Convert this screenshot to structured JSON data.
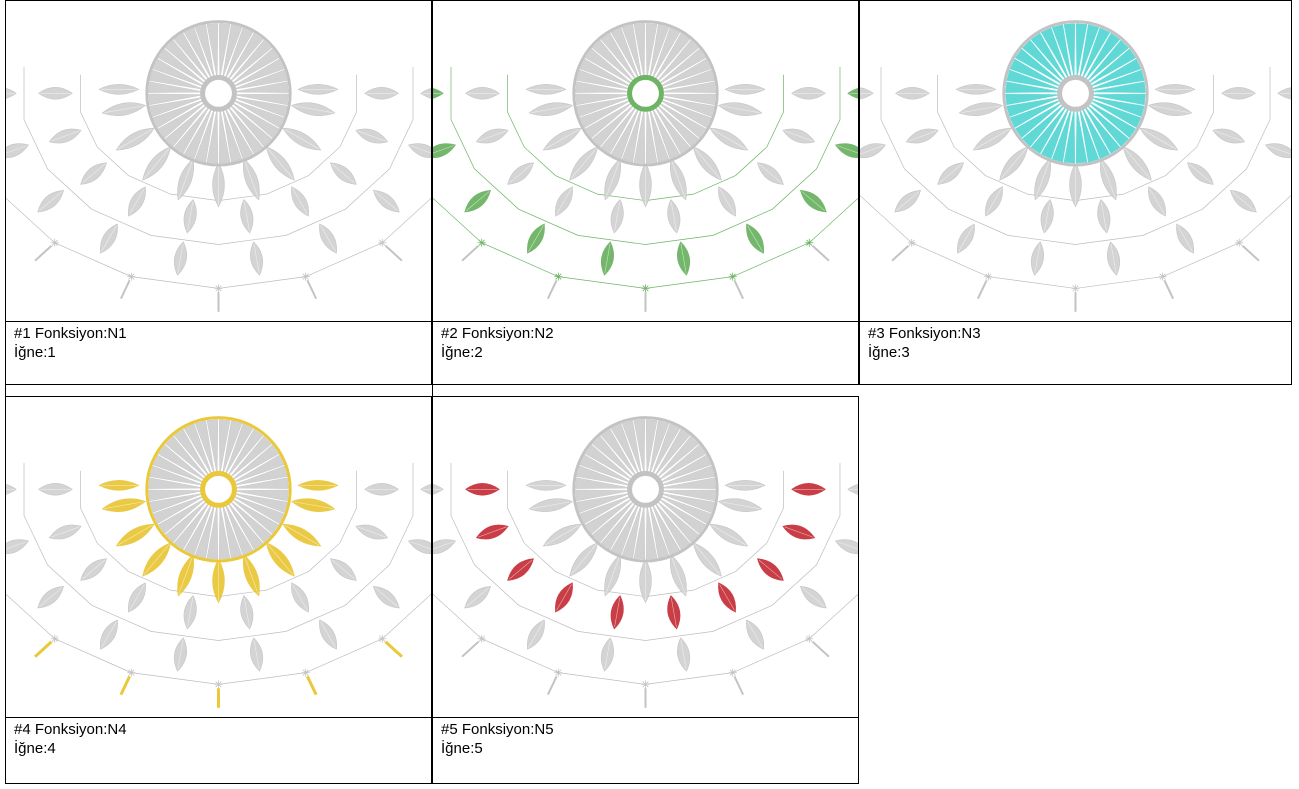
{
  "colors": {
    "gray": "#d2d2d2",
    "gray_dark": "#c3c3c3",
    "line": "#bdbdbd"
  },
  "cards": [
    {
      "title": "#1 Fonksiyon:N1",
      "needle": "İğne:1",
      "highlight": "none",
      "color": "#d2d2d2"
    },
    {
      "title": "#2 Fonksiyon:N2",
      "needle": "İğne:2",
      "highlight": "green",
      "color": "#6db465"
    },
    {
      "title": "#3 Fonksiyon:N3",
      "needle": "İğne:3",
      "highlight": "cyan",
      "color": "#5fd8d6"
    },
    {
      "title": "#4 Fonksiyon:N4",
      "needle": "İğne:4",
      "highlight": "yellow",
      "color": "#e9c83a"
    },
    {
      "title": "#5 Fonksiyon:N5",
      "needle": "İğne:5",
      "highlight": "red",
      "color": "#c7333d"
    }
  ]
}
